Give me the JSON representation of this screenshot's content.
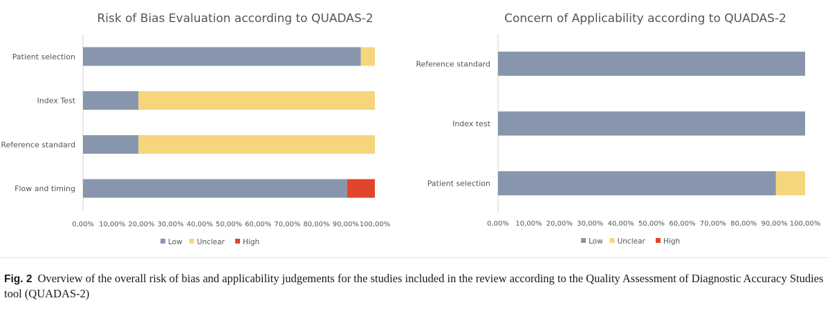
{
  "colors": {
    "low": "#8896ad",
    "unclear": "#f5d67c",
    "high": "#e2452b",
    "axis": "#d0d0d0",
    "text": "#555555"
  },
  "chart_data": [
    {
      "type": "bar",
      "orientation": "horizontal",
      "stacked": true,
      "title": "Risk of Bias Evaluation according to QUADAS-2",
      "categories": [
        "Patient selection",
        "Index Test",
        "Reference standard",
        "Flow and timing"
      ],
      "series": [
        {
          "name": "Low",
          "values": [
            95.2,
            19,
            19,
            90.5
          ]
        },
        {
          "name": "Unclear",
          "values": [
            4.8,
            81,
            81,
            0
          ]
        },
        {
          "name": "High",
          "values": [
            0,
            0,
            0,
            9.5
          ]
        }
      ],
      "xlim": [
        0,
        100
      ],
      "xticks": [
        "0,00%",
        "10,00%",
        "20,00%",
        "30,00%",
        "40,00%",
        "50,00%",
        "60,00%",
        "70,00%",
        "80,00%",
        "90,00%",
        "100,00%"
      ],
      "legend_position": "bottom",
      "grid": false
    },
    {
      "type": "bar",
      "orientation": "horizontal",
      "stacked": true,
      "title": "Concern of Applicability according to QUADAS-2",
      "categories": [
        "Reference standard",
        "Index test",
        "Patient selection"
      ],
      "series": [
        {
          "name": "Low",
          "values": [
            100,
            100,
            90.5
          ]
        },
        {
          "name": "Unclear",
          "values": [
            0,
            0,
            9.5
          ]
        },
        {
          "name": "High",
          "values": [
            0,
            0,
            0
          ]
        }
      ],
      "xlim": [
        0,
        100
      ],
      "xticks": [
        "0,00%",
        "10,00%",
        "20,00%",
        "30,00%",
        "40,00%",
        "50,00%",
        "60,00%",
        "70,00%",
        "80,00%",
        "90,00%",
        "100,00%"
      ],
      "legend_position": "bottom",
      "grid": false
    }
  ],
  "caption": {
    "label": "Fig. 2",
    "text": "Overview of the overall risk of bias and applicability judgements for the studies included in the review according to the Quality Assessment of Diagnostic Accuracy Studies tool (QUADAS-2)"
  }
}
